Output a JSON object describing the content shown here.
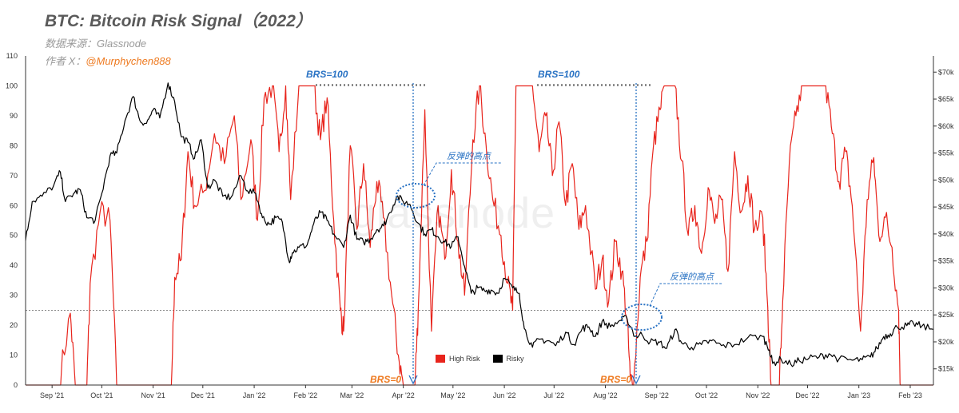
{
  "header": {
    "title": "BTC: Bitcoin Risk Signal（2022）",
    "source": "数据来源：Glassnode",
    "author_prefix": "作者 X：",
    "author_handle": "@Murphychen888"
  },
  "watermark": "glassnode",
  "annotations": {
    "brs100_a": "BRS=100",
    "brs100_b": "BRS=100",
    "brs0_a": "BRS=0",
    "brs0_b": "BRS=0",
    "rebound_a": "反弹的高点",
    "rebound_b": "反弹的高点"
  },
  "colors": {
    "high_risk": "#e8241c",
    "risky": "#000000",
    "annotation_blue": "#2a73c4",
    "annotation_orange": "#ee7a20"
  },
  "chart_data": {
    "type": "line",
    "title": "BTC: Bitcoin Risk Signal（2022）",
    "legend_position": "bottom-center",
    "grid": false,
    "x_ticks": [
      "Sep '21",
      "Oct '21",
      "Nov '21",
      "Dec '21",
      "Jan '22",
      "Feb '22",
      "Mar '22",
      "Apr '22",
      "May '22",
      "Jun '22",
      "Jul '22",
      "Aug '22",
      "Sep '22",
      "Oct '22",
      "Nov '22",
      "Dec '22",
      "Jan '23",
      "Feb '23"
    ],
    "x_range": [
      "2021-08-16",
      "2023-02-15"
    ],
    "y_left": {
      "range": [
        0,
        110
      ],
      "ticks": [
        "0",
        "10",
        "20",
        "30",
        "40",
        "50",
        "60",
        "70",
        "80",
        "90",
        "100",
        "110"
      ]
    },
    "y_right": {
      "range": [
        12000,
        73000
      ],
      "ticks": [
        "$15k",
        "$20k",
        "$25k",
        "$30k",
        "$35k",
        "$40k",
        "$45k",
        "$50k",
        "$55k",
        "$60k",
        "$65k",
        "$70k"
      ]
    },
    "reference_line": 25,
    "series": [
      {
        "name": "High Risk",
        "color": "#e8241c",
        "axis": "left",
        "points": [
          [
            "2021-08-16",
            0
          ],
          [
            "2021-09-05",
            0
          ],
          [
            "2021-09-12",
            24
          ],
          [
            "2021-09-15",
            0
          ],
          [
            "2021-09-22",
            0
          ],
          [
            "2021-09-24",
            34
          ],
          [
            "2021-09-30",
            58
          ],
          [
            "2021-10-06",
            55
          ],
          [
            "2021-10-10",
            0
          ],
          [
            "2021-11-12",
            0
          ],
          [
            "2021-11-14",
            36
          ],
          [
            "2021-11-18",
            42
          ],
          [
            "2021-11-22",
            78
          ],
          [
            "2021-11-26",
            60
          ],
          [
            "2021-12-02",
            65
          ],
          [
            "2021-12-08",
            84
          ],
          [
            "2021-12-14",
            74
          ],
          [
            "2021-12-20",
            90
          ],
          [
            "2021-12-24",
            62
          ],
          [
            "2021-12-30",
            82
          ],
          [
            "2022-01-03",
            55
          ],
          [
            "2022-01-07",
            96
          ],
          [
            "2022-01-12",
            100
          ],
          [
            "2022-01-16",
            78
          ],
          [
            "2022-01-20",
            100
          ],
          [
            "2022-01-23",
            62
          ],
          [
            "2022-01-28",
            100
          ],
          [
            "2022-02-06",
            100
          ],
          [
            "2022-02-10",
            82
          ],
          [
            "2022-02-14",
            96
          ],
          [
            "2022-02-18",
            55
          ],
          [
            "2022-02-22",
            25
          ],
          [
            "2022-02-24",
            18
          ],
          [
            "2022-02-28",
            80
          ],
          [
            "2022-03-04",
            52
          ],
          [
            "2022-03-08",
            74
          ],
          [
            "2022-03-12",
            46
          ],
          [
            "2022-03-16",
            68
          ],
          [
            "2022-03-20",
            56
          ],
          [
            "2022-03-25",
            30
          ],
          [
            "2022-03-29",
            10
          ],
          [
            "2022-04-01",
            0
          ],
          [
            "2022-04-08",
            0
          ],
          [
            "2022-04-10",
            25
          ],
          [
            "2022-04-14",
            92
          ],
          [
            "2022-04-18",
            18
          ],
          [
            "2022-04-22",
            60
          ],
          [
            "2022-04-26",
            42
          ],
          [
            "2022-04-30",
            72
          ],
          [
            "2022-05-04",
            48
          ],
          [
            "2022-05-08",
            30
          ],
          [
            "2022-05-13",
            82
          ],
          [
            "2022-05-17",
            100
          ],
          [
            "2022-05-21",
            80
          ],
          [
            "2022-05-25",
            62
          ],
          [
            "2022-05-30",
            50
          ],
          [
            "2022-06-03",
            34
          ],
          [
            "2022-06-06",
            25
          ],
          [
            "2022-06-08",
            100
          ],
          [
            "2022-06-18",
            100
          ],
          [
            "2022-06-22",
            78
          ],
          [
            "2022-06-26",
            90
          ],
          [
            "2022-06-30",
            70
          ],
          [
            "2022-07-04",
            88
          ],
          [
            "2022-07-08",
            60
          ],
          [
            "2022-07-12",
            74
          ],
          [
            "2022-07-16",
            52
          ],
          [
            "2022-07-20",
            60
          ],
          [
            "2022-07-26",
            32
          ],
          [
            "2022-07-30",
            42
          ],
          [
            "2022-08-03",
            28
          ],
          [
            "2022-08-07",
            48
          ],
          [
            "2022-08-11",
            38
          ],
          [
            "2022-08-14",
            22
          ],
          [
            "2022-08-16",
            2
          ],
          [
            "2022-08-18",
            0
          ],
          [
            "2022-08-22",
            36
          ],
          [
            "2022-08-26",
            48
          ],
          [
            "2022-08-30",
            80
          ],
          [
            "2022-09-03",
            92
          ],
          [
            "2022-09-06",
            100
          ],
          [
            "2022-09-12",
            100
          ],
          [
            "2022-09-16",
            75
          ],
          [
            "2022-09-20",
            50
          ],
          [
            "2022-09-24",
            60
          ],
          [
            "2022-09-28",
            44
          ],
          [
            "2022-10-02",
            66
          ],
          [
            "2022-10-06",
            54
          ],
          [
            "2022-10-10",
            62
          ],
          [
            "2022-10-14",
            38
          ],
          [
            "2022-10-18",
            78
          ],
          [
            "2022-10-22",
            58
          ],
          [
            "2022-10-26",
            70
          ],
          [
            "2022-10-30",
            52
          ],
          [
            "2022-11-04",
            56
          ],
          [
            "2022-11-07",
            26
          ],
          [
            "2022-11-09",
            0
          ],
          [
            "2022-11-14",
            0
          ],
          [
            "2022-11-16",
            28
          ],
          [
            "2022-11-20",
            74
          ],
          [
            "2022-11-24",
            90
          ],
          [
            "2022-11-28",
            100
          ],
          [
            "2022-12-12",
            100
          ],
          [
            "2022-12-16",
            84
          ],
          [
            "2022-12-20",
            68
          ],
          [
            "2022-12-24",
            78
          ],
          [
            "2022-12-28",
            60
          ],
          [
            "2023-01-02",
            18
          ],
          [
            "2023-01-06",
            62
          ],
          [
            "2023-01-10",
            76
          ],
          [
            "2023-01-13",
            50
          ],
          [
            "2023-01-17",
            56
          ],
          [
            "2023-01-21",
            46
          ],
          [
            "2023-01-25",
            25
          ],
          [
            "2023-01-26",
            0
          ],
          [
            "2023-02-15",
            0
          ]
        ]
      },
      {
        "name": "Risky",
        "color": "#000000",
        "axis": "right",
        "points": [
          [
            "2021-08-16",
            38800
          ],
          [
            "2021-08-20",
            46000
          ],
          [
            "2021-08-26",
            47000
          ],
          [
            "2021-09-02",
            49000
          ],
          [
            "2021-09-06",
            51500
          ],
          [
            "2021-09-09",
            46000
          ],
          [
            "2021-09-14",
            47500
          ],
          [
            "2021-09-18",
            48200
          ],
          [
            "2021-09-22",
            43000
          ],
          [
            "2021-09-27",
            42500
          ],
          [
            "2021-10-01",
            47500
          ],
          [
            "2021-10-06",
            54500
          ],
          [
            "2021-10-10",
            55000
          ],
          [
            "2021-10-15",
            61000
          ],
          [
            "2021-10-20",
            65500
          ],
          [
            "2021-10-24",
            61000
          ],
          [
            "2021-10-28",
            60500
          ],
          [
            "2021-11-01",
            63000
          ],
          [
            "2021-11-05",
            61500
          ],
          [
            "2021-11-10",
            68000
          ],
          [
            "2021-11-14",
            64500
          ],
          [
            "2021-11-18",
            58000
          ],
          [
            "2021-11-22",
            57000
          ],
          [
            "2021-11-26",
            54000
          ],
          [
            "2021-11-30",
            57500
          ],
          [
            "2021-12-04",
            48500
          ],
          [
            "2021-12-08",
            50000
          ],
          [
            "2021-12-13",
            47000
          ],
          [
            "2021-12-18",
            46800
          ],
          [
            "2021-12-24",
            50800
          ],
          [
            "2021-12-28",
            48000
          ],
          [
            "2022-01-02",
            47500
          ],
          [
            "2022-01-06",
            43000
          ],
          [
            "2022-01-10",
            41800
          ],
          [
            "2022-01-14",
            43000
          ],
          [
            "2022-01-18",
            42200
          ],
          [
            "2022-01-22",
            35000
          ],
          [
            "2022-01-24",
            36500
          ],
          [
            "2022-01-28",
            37500
          ],
          [
            "2022-02-02",
            38000
          ],
          [
            "2022-02-06",
            42000
          ],
          [
            "2022-02-10",
            44000
          ],
          [
            "2022-02-14",
            42500
          ],
          [
            "2022-02-18",
            40000
          ],
          [
            "2022-02-24",
            37500
          ],
          [
            "2022-02-28",
            43500
          ],
          [
            "2022-03-04",
            39000
          ],
          [
            "2022-03-08",
            38500
          ],
          [
            "2022-03-12",
            39000
          ],
          [
            "2022-03-16",
            40800
          ],
          [
            "2022-03-20",
            41500
          ],
          [
            "2022-03-24",
            44000
          ],
          [
            "2022-03-28",
            47000
          ],
          [
            "2022-04-01",
            46000
          ],
          [
            "2022-04-05",
            45500
          ],
          [
            "2022-04-10",
            42000
          ],
          [
            "2022-04-14",
            40000
          ],
          [
            "2022-04-18",
            40800
          ],
          [
            "2022-04-22",
            39500
          ],
          [
            "2022-04-26",
            38500
          ],
          [
            "2022-04-30",
            37700
          ],
          [
            "2022-05-04",
            39500
          ],
          [
            "2022-05-08",
            34000
          ],
          [
            "2022-05-12",
            29000
          ],
          [
            "2022-05-16",
            30000
          ],
          [
            "2022-05-20",
            29500
          ],
          [
            "2022-05-24",
            29600
          ],
          [
            "2022-05-28",
            29000
          ],
          [
            "2022-06-01",
            31800
          ],
          [
            "2022-06-06",
            30000
          ],
          [
            "2022-06-10",
            29000
          ],
          [
            "2022-06-13",
            22500
          ],
          [
            "2022-06-18",
            19000
          ],
          [
            "2022-06-22",
            20500
          ],
          [
            "2022-06-28",
            20200
          ],
          [
            "2022-07-02",
            19300
          ],
          [
            "2022-07-08",
            21800
          ],
          [
            "2022-07-13",
            19500
          ],
          [
            "2022-07-18",
            22500
          ],
          [
            "2022-07-22",
            22800
          ],
          [
            "2022-07-26",
            21000
          ],
          [
            "2022-07-30",
            23800
          ],
          [
            "2022-08-04",
            22800
          ],
          [
            "2022-08-10",
            24000
          ],
          [
            "2022-08-14",
            24400
          ],
          [
            "2022-08-19",
            21000
          ],
          [
            "2022-08-23",
            21400
          ],
          [
            "2022-08-28",
            20000
          ],
          [
            "2022-09-02",
            20000
          ],
          [
            "2022-09-07",
            18800
          ],
          [
            "2022-09-12",
            22300
          ],
          [
            "2022-09-16",
            19800
          ],
          [
            "2022-09-22",
            19000
          ],
          [
            "2022-09-28",
            19500
          ],
          [
            "2022-10-04",
            20200
          ],
          [
            "2022-10-10",
            19300
          ],
          [
            "2022-10-18",
            19500
          ],
          [
            "2022-10-26",
            20800
          ],
          [
            "2022-11-04",
            21000
          ],
          [
            "2022-11-08",
            18500
          ],
          [
            "2022-11-10",
            16000
          ],
          [
            "2022-11-15",
            16800
          ],
          [
            "2022-11-21",
            15800
          ],
          [
            "2022-11-26",
            16500
          ],
          [
            "2022-12-02",
            17000
          ],
          [
            "2022-12-08",
            17200
          ],
          [
            "2022-12-14",
            17800
          ],
          [
            "2022-12-20",
            16800
          ],
          [
            "2022-12-28",
            16600
          ],
          [
            "2023-01-03",
            16700
          ],
          [
            "2023-01-08",
            17200
          ],
          [
            "2023-01-12",
            18800
          ],
          [
            "2023-01-16",
            21000
          ],
          [
            "2023-01-20",
            21500
          ],
          [
            "2023-01-24",
            22800
          ],
          [
            "2023-01-30",
            23000
          ],
          [
            "2023-02-03",
            23400
          ],
          [
            "2023-02-08",
            22900
          ],
          [
            "2023-02-15",
            22300
          ]
        ]
      }
    ]
  }
}
